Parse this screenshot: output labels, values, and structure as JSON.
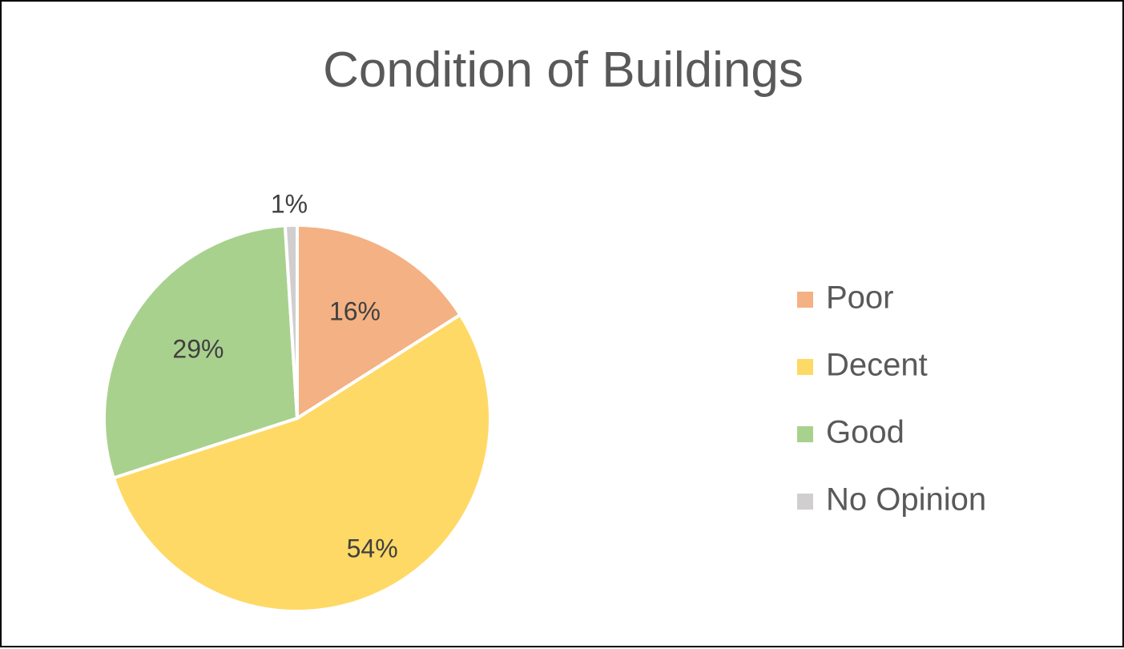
{
  "chart_data": {
    "type": "pie",
    "title": "Condition of Buildings",
    "categories": [
      "Poor",
      "Decent",
      "Good",
      "No Opinion"
    ],
    "values": [
      16,
      54,
      29,
      1
    ],
    "labels": [
      "16%",
      "54%",
      "29%",
      "1%"
    ],
    "colors": [
      "#F4B183",
      "#FFD966",
      "#A9D18E",
      "#D0CECE"
    ],
    "legend_position": "right",
    "start_angle": "12 o'clock, clockwise"
  }
}
